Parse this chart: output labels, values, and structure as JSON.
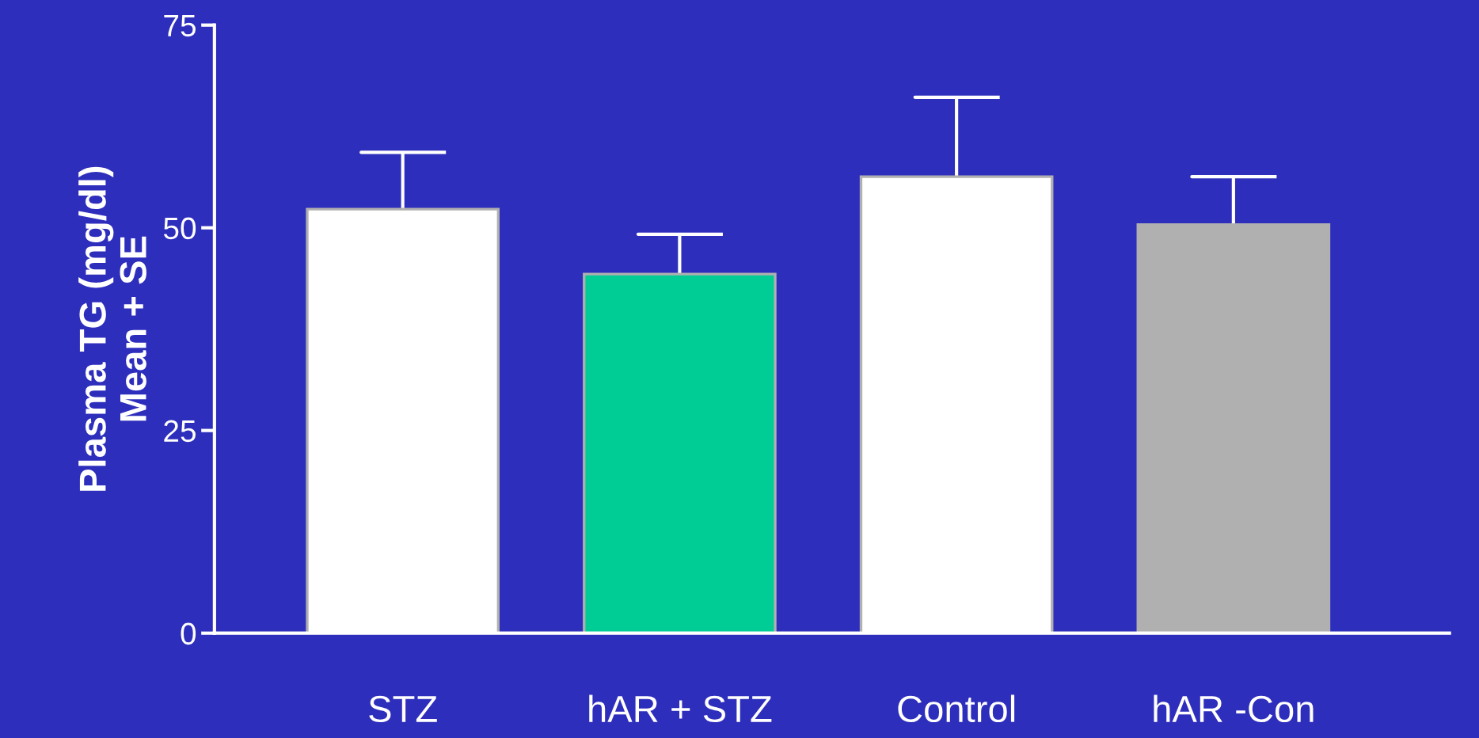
{
  "chart_data": {
    "type": "bar",
    "ylabel": "Plasma TG (mg/dl)\nMean + SE",
    "categories": [
      "STZ",
      "hAR + STZ",
      "Control",
      "hAR -Con"
    ],
    "values": [
      52.3,
      44.3,
      56.3,
      50.4
    ],
    "errors": [
      [
        52.3,
        59.3
      ],
      [
        44.3,
        49.2
      ],
      [
        56.3,
        66.1
      ],
      [
        50.4,
        56.3
      ]
    ],
    "colors": [
      "#ffffff",
      "#00cc96",
      "#ffffff",
      "#b0b0b0"
    ],
    "ylim": [
      0,
      75
    ],
    "yticks": [
      0,
      25,
      50,
      75
    ],
    "grid": false
  }
}
